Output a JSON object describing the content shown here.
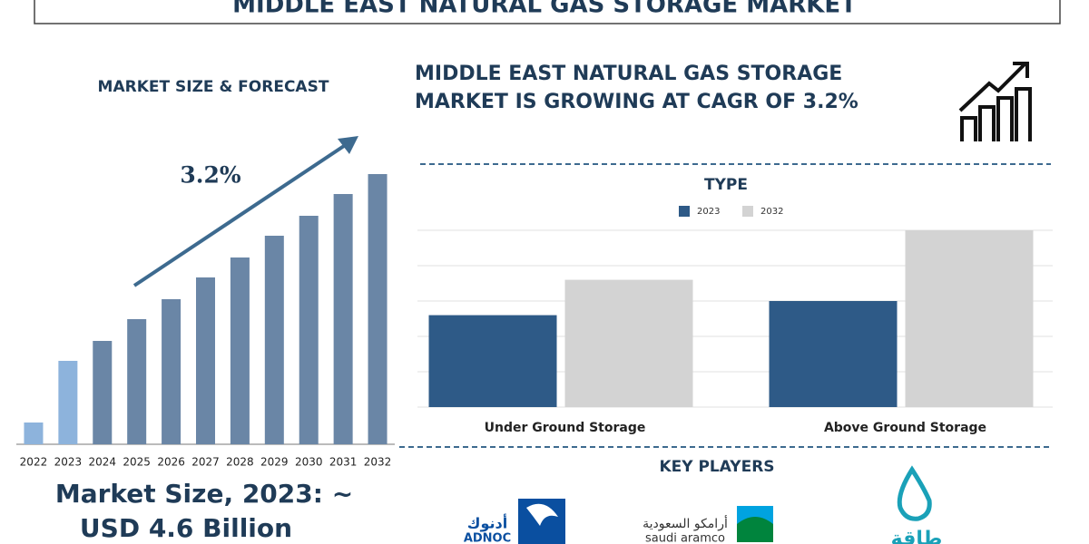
{
  "header": {
    "title": "MIDDLE EAST NATURAL GAS STORAGE MARKET"
  },
  "forecast": {
    "title": "MARKET SIZE & FORECAST",
    "cagr_label": "3.2%",
    "market_size": [
      "Market Size, 2023: ~",
      "USD 4.6 Billion"
    ]
  },
  "headline": [
    "MIDDLE EAST NATURAL GAS STORAGE",
    "MARKET IS GROWING AT CAGR OF 3.2%"
  ],
  "key_players": {
    "title": "KEY PLAYERS",
    "logos": [
      {
        "arabic": "أدنوك",
        "latin": "ADNOC"
      },
      {
        "arabic": "أرامكو السعودية",
        "latin": "saudi aramco"
      },
      {
        "arabic": "طاقة"
      }
    ]
  },
  "chart_data": [
    {
      "type": "bar",
      "categories": [
        "2022",
        "2023",
        "2024",
        "2025",
        "2026",
        "2027",
        "2028",
        "2029",
        "2030",
        "2031",
        "2032"
      ],
      "values": [
        1.2,
        4.6,
        5.7,
        6.9,
        8.0,
        9.2,
        10.3,
        11.5,
        12.6,
        13.8,
        14.9
      ],
      "colors": [
        "#8db3dc",
        "#8db3dc",
        "#6a86a6",
        "#6a86a6",
        "#6a86a6",
        "#6a86a6",
        "#6a86a6",
        "#6a86a6",
        "#6a86a6",
        "#6a86a6",
        "#6a86a6"
      ],
      "ylim": [
        0,
        15
      ]
    },
    {
      "type": "bar",
      "title": "TYPE",
      "categories": [
        "Under Ground Storage",
        "Above Ground Storage"
      ],
      "series": [
        {
          "name": "2023",
          "color": "#2e5a87",
          "values": [
            2.6,
            3.0
          ]
        },
        {
          "name": "2032",
          "color": "#d3d3d3",
          "values": [
            3.6,
            5.0
          ]
        }
      ],
      "ylim": [
        0,
        5
      ],
      "yticks": [
        0,
        1,
        2,
        3,
        4,
        5
      ],
      "grid": true
    }
  ]
}
